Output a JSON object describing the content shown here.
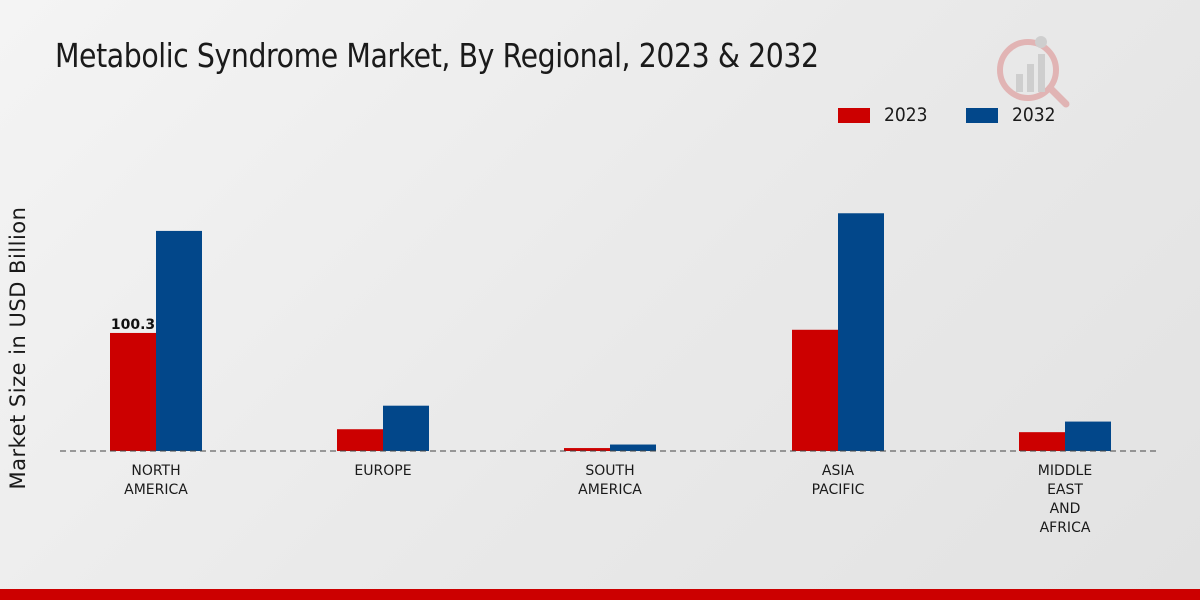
{
  "chart_data": {
    "type": "bar",
    "title": "Metabolic Syndrome Market, By Regional, 2023 & 2032",
    "xlabel": "",
    "ylabel": "Market Size in USD Billion",
    "categories": [
      [
        "NORTH",
        "AMERICA"
      ],
      [
        "EUROPE"
      ],
      [
        "SOUTH",
        "AMERICA"
      ],
      [
        "ASIA",
        "PACIFIC"
      ],
      [
        "MIDDLE",
        "EAST",
        "AND",
        "AFRICA"
      ]
    ],
    "series": [
      {
        "name": "2023",
        "color": "#cc0000",
        "values": [
          100.3,
          18.5,
          2.5,
          103.0,
          16.0
        ]
      },
      {
        "name": "2032",
        "color": "#02478a",
        "values": [
          187.0,
          38.5,
          5.5,
          202.0,
          25.0
        ]
      }
    ],
    "data_labels": [
      {
        "series": 0,
        "index": 0,
        "text": "100.3"
      }
    ],
    "ylim": [
      0,
      260
    ],
    "grid": false,
    "legend_position": "top-right"
  },
  "watermark": {
    "icon": "market-research-logo-icon"
  }
}
